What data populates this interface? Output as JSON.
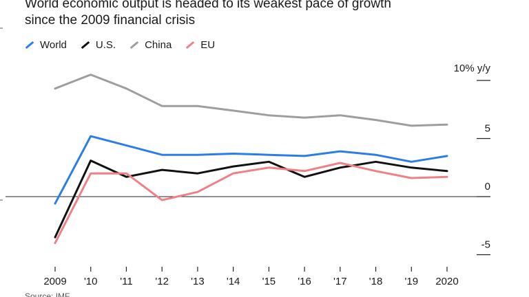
{
  "chart_data": {
    "type": "line",
    "title_lines": [
      "World economic output is headed to its weakest pace of growth",
      "since the 2009 financial crisis"
    ],
    "unit_label": "10% y/y",
    "categories": [
      "2009",
      "'10",
      "'11",
      "'12",
      "'13",
      "'14",
      "'15",
      "'16",
      "'17",
      "'18",
      "'19",
      "2020"
    ],
    "yticks": [
      {
        "value": 10,
        "label": ""
      },
      {
        "value": 5,
        "label": "5"
      },
      {
        "value": 0,
        "label": "0"
      },
      {
        "value": -5,
        "label": "-5"
      }
    ],
    "ylim": [
      -6.5,
      11
    ],
    "series": [
      {
        "name": "World",
        "color": "#2b7de9",
        "values": [
          -0.6,
          5.2,
          4.4,
          3.6,
          3.6,
          3.7,
          3.6,
          3.5,
          3.9,
          3.6,
          3.0,
          3.5
        ]
      },
      {
        "name": "U.S.",
        "color": "#111111",
        "values": [
          -3.5,
          3.1,
          1.7,
          2.3,
          2.0,
          2.6,
          3.0,
          1.7,
          2.5,
          3.0,
          2.5,
          2.2
        ]
      },
      {
        "name": "China",
        "color": "#9e9e9e",
        "values": [
          9.3,
          10.5,
          9.3,
          7.8,
          7.8,
          7.4,
          7.0,
          6.8,
          7.0,
          6.6,
          6.1,
          6.2
        ]
      },
      {
        "name": "EU",
        "color": "#f07f86",
        "values": [
          -4.0,
          2.0,
          2.0,
          -0.3,
          0.4,
          2.0,
          2.5,
          2.2,
          2.9,
          2.2,
          1.6,
          1.7
        ]
      }
    ]
  },
  "source_stub": "Source: IMF"
}
